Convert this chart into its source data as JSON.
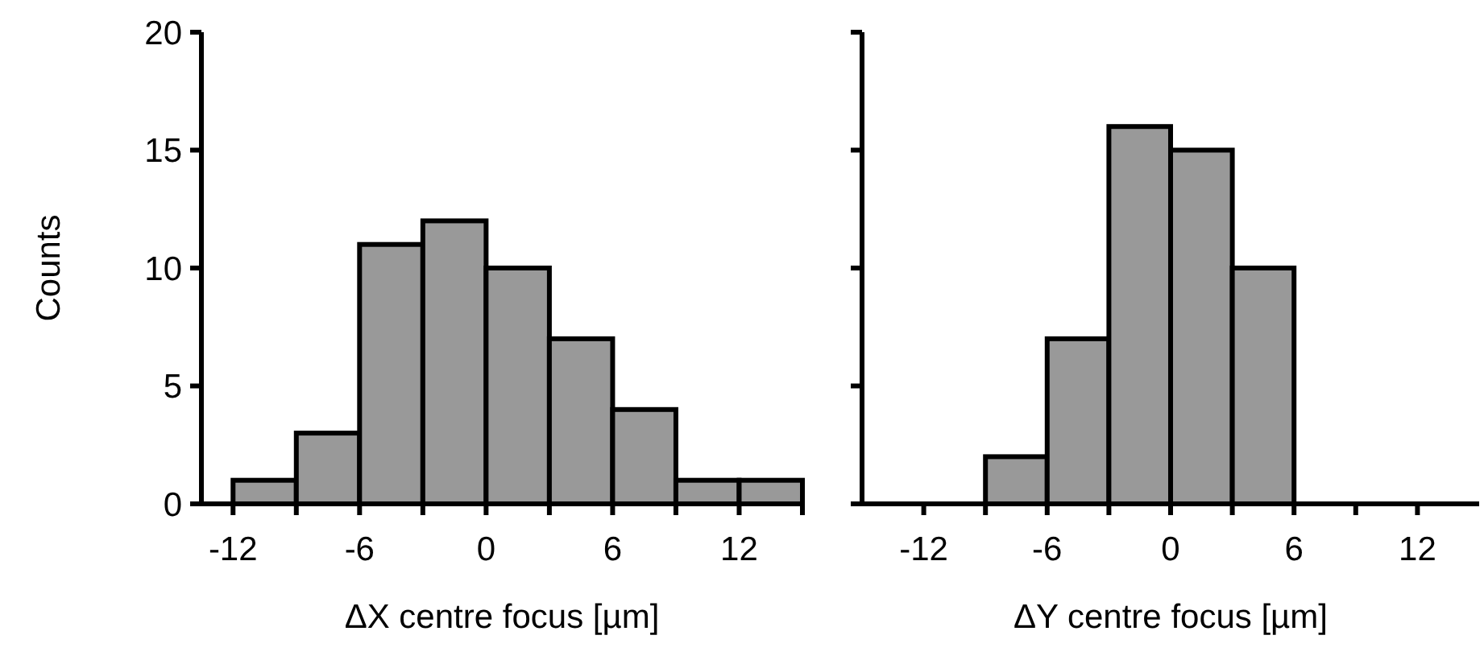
{
  "chart_data": [
    {
      "type": "histogram",
      "xlabel": "ΔX centre focus [µm]",
      "ylabel": "Counts",
      "bins": [
        -12,
        -9,
        -6,
        -3,
        0,
        3,
        6,
        9,
        12,
        15
      ],
      "values": [
        1,
        3,
        11,
        12,
        10,
        7,
        4,
        1,
        1
      ],
      "color": "#999999",
      "xlim": [
        -13.5,
        15
      ],
      "xticks": [
        {
          "value": -12,
          "label": "-12"
        },
        {
          "value": -9,
          "label": null
        },
        {
          "value": -6,
          "label": "-6"
        },
        {
          "value": -3,
          "label": null
        },
        0,
        {
          "value": 3,
          "label": null
        },
        6,
        {
          "value": 9,
          "label": null
        },
        12,
        {
          "value": 15,
          "label": null
        }
      ],
      "ylim": [
        0,
        20
      ],
      "yticks": [
        0,
        5,
        10,
        15,
        20
      ],
      "grid": false
    },
    {
      "type": "histogram",
      "xlabel": "ΔY centre focus [µm]",
      "bins": [
        -9,
        -6,
        -3,
        0,
        3,
        6
      ],
      "values": [
        2,
        7,
        16,
        15,
        10
      ],
      "color": "#999999",
      "xlim": [
        -15,
        15
      ],
      "xticks": [
        {
          "value": -12,
          "label": "-12"
        },
        {
          "value": -9,
          "label": null
        },
        {
          "value": -6,
          "label": "-6"
        },
        {
          "value": -3,
          "label": null
        },
        0,
        {
          "value": 3,
          "label": null
        },
        6,
        {
          "value": 9,
          "label": null
        },
        12
      ],
      "ylim": [
        0,
        20
      ],
      "yticks": [
        0,
        5,
        10,
        15,
        20
      ],
      "tick_labels": "x",
      "grid": false
    }
  ]
}
